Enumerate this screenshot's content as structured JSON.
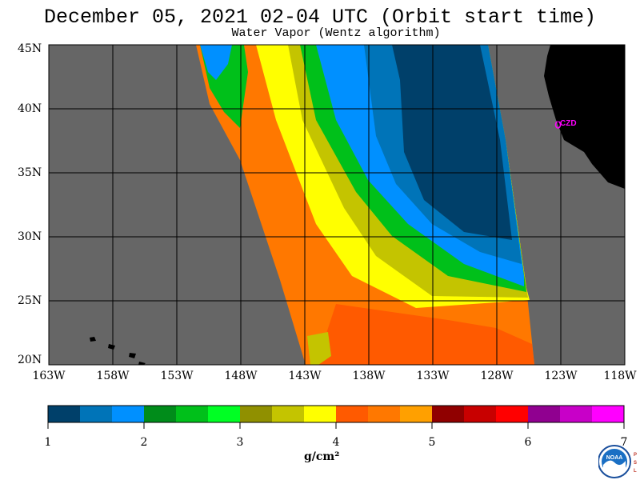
{
  "header": {
    "title": "December 05, 2021  02-04 UTC  (Orbit start time)",
    "subtitle": "Water Vapor (Wentz algorithm)"
  },
  "map": {
    "lat_labels": [
      "45N",
      "40N",
      "35N",
      "30N",
      "25N",
      "20N"
    ],
    "lon_labels": [
      "163W",
      "158W",
      "153W",
      "148W",
      "143W",
      "138W",
      "133W",
      "128W",
      "123W",
      "118W"
    ],
    "station_label": "CZD",
    "colors": {
      "no_data": "#666666",
      "land": "#000000",
      "grid": "#000000",
      "station": "#ff00ff"
    }
  },
  "colorbar": {
    "colors": [
      "#00406a",
      "#0074b8",
      "#0090ff",
      "#008c1a",
      "#00c01a",
      "#00ff24",
      "#909000",
      "#c4c400",
      "#ffff00",
      "#ff5a00",
      "#ff7800",
      "#ffa000",
      "#900000",
      "#c80000",
      "#ff0000",
      "#900090",
      "#c800c8",
      "#ff00ff"
    ],
    "tick_labels": [
      "1",
      "2",
      "3",
      "4",
      "5",
      "6",
      "7"
    ],
    "units": "g/cm²"
  },
  "logo": {
    "name": "NOAA",
    "side_text": "PSL"
  }
}
